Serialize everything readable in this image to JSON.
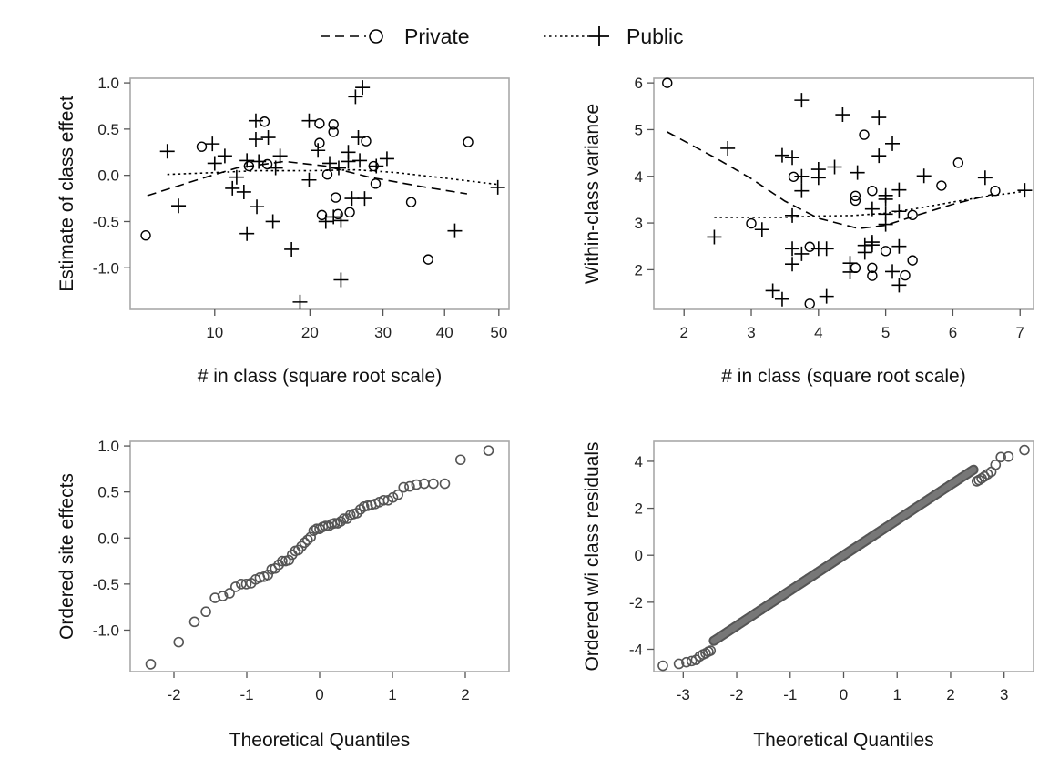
{
  "legend": [
    {
      "label": "Private",
      "line": "dashed",
      "marker": "circle"
    },
    {
      "label": "Public",
      "line": "dotted",
      "marker": "plus"
    }
  ],
  "chart_data": [
    {
      "type": "scatter",
      "panel": "top-left",
      "xlabel": "# in class (square root scale)",
      "ylabel": "Estimate of class effect",
      "x_scale": "sqrt",
      "xlim": [
        4,
        52
      ],
      "ylim": [
        -1.45,
        1.05
      ],
      "xticks": [
        10,
        20,
        30,
        40,
        50
      ],
      "xtick_labels": [
        "10",
        "20",
        "30",
        "40",
        "50"
      ],
      "yticks": [
        -1.0,
        -0.5,
        0.0,
        0.5,
        1.0
      ],
      "ytick_labels": [
        "-1.0",
        "-0.5",
        "0.0",
        "0.5",
        "1.0"
      ],
      "series": [
        {
          "name": "Private",
          "marker": "circle",
          "points": [
            [
              4.9,
              -0.65
            ],
            [
              8.9,
              0.31
            ],
            [
              13.2,
              0.1
            ],
            [
              14.8,
              0.58
            ],
            [
              15.1,
              0.12
            ],
            [
              21.2,
              0.56
            ],
            [
              21.2,
              0.35
            ],
            [
              21.5,
              -0.43
            ],
            [
              22.2,
              0.01
            ],
            [
              23.0,
              0.55
            ],
            [
              23.0,
              0.47
            ],
            [
              23.3,
              -0.24
            ],
            [
              23.6,
              -0.42
            ],
            [
              25.2,
              -0.4
            ],
            [
              27.5,
              0.37
            ],
            [
              28.6,
              0.1
            ],
            [
              28.9,
              -0.09
            ],
            [
              34.4,
              -0.29
            ],
            [
              37.2,
              -0.91
            ],
            [
              44.2,
              0.36
            ]
          ]
        },
        {
          "name": "Public",
          "marker": "plus",
          "points": [
            [
              6.3,
              0.26
            ],
            [
              7.1,
              -0.33
            ],
            [
              9.8,
              0.34
            ],
            [
              10.0,
              0.13
            ],
            [
              10.9,
              0.21
            ],
            [
              11.6,
              -0.14
            ],
            [
              12.0,
              -0.02
            ],
            [
              12.7,
              -0.18
            ],
            [
              13.0,
              -0.63
            ],
            [
              13.0,
              0.16
            ],
            [
              13.9,
              0.59
            ],
            [
              13.9,
              0.39
            ],
            [
              14.0,
              -0.34
            ],
            [
              14.2,
              0.15
            ],
            [
              15.2,
              0.41
            ],
            [
              15.7,
              -0.5
            ],
            [
              16.0,
              0.08
            ],
            [
              16.5,
              0.21
            ],
            [
              17.8,
              -0.8
            ],
            [
              18.8,
              -1.37
            ],
            [
              19.9,
              0.59
            ],
            [
              19.9,
              -0.05
            ],
            [
              21.0,
              0.27
            ],
            [
              22.0,
              -0.5
            ],
            [
              22.5,
              0.13
            ],
            [
              23.0,
              -0.45
            ],
            [
              23.7,
              0.08
            ],
            [
              24.0,
              -0.49
            ],
            [
              24.0,
              -1.13
            ],
            [
              25.0,
              0.25
            ],
            [
              25.0,
              0.15
            ],
            [
              25.5,
              -0.25
            ],
            [
              26.0,
              0.85
            ],
            [
              26.4,
              0.41
            ],
            [
              26.6,
              0.16
            ],
            [
              27.0,
              0.95
            ],
            [
              27.3,
              -0.25
            ],
            [
              29.0,
              0.1
            ],
            [
              30.6,
              0.18
            ],
            [
              41.8,
              -0.6
            ],
            [
              49.8,
              -0.13
            ]
          ]
        }
      ],
      "smooth_lines": [
        {
          "name": "Private",
          "style": "dashed",
          "points": [
            [
              5.0,
              -0.22
            ],
            [
              9.0,
              -0.03
            ],
            [
              12.0,
              0.08
            ],
            [
              17.0,
              0.15
            ],
            [
              22.0,
              0.1
            ],
            [
              28.0,
              -0.02
            ],
            [
              36.0,
              -0.12
            ],
            [
              44.0,
              -0.2
            ]
          ]
        },
        {
          "name": "Public",
          "style": "dotted",
          "points": [
            [
              6.3,
              0.01
            ],
            [
              10.0,
              0.03
            ],
            [
              14.0,
              0.05
            ],
            [
              20.0,
              0.05
            ],
            [
              26.0,
              0.06
            ],
            [
              32.0,
              0.03
            ],
            [
              40.0,
              -0.03
            ],
            [
              50.0,
              -0.1
            ]
          ]
        }
      ]
    },
    {
      "type": "scatter",
      "panel": "top-right",
      "xlabel": "# in class (square root scale)",
      "ylabel": "Within-class variance",
      "xlim": [
        1.55,
        7.2
      ],
      "ylim": [
        1.15,
        6.1
      ],
      "xticks": [
        2,
        3,
        4,
        5,
        6,
        7
      ],
      "xtick_labels": [
        "2",
        "3",
        "4",
        "5",
        "6",
        "7"
      ],
      "yticks": [
        2,
        3,
        4,
        5,
        6
      ],
      "ytick_labels": [
        "2",
        "3",
        "4",
        "5",
        "6"
      ],
      "series": [
        {
          "name": "Private",
          "marker": "circle",
          "points": [
            [
              1.75,
              6.0
            ],
            [
              3.0,
              2.99
            ],
            [
              3.63,
              3.99
            ],
            [
              3.87,
              2.49
            ],
            [
              3.87,
              1.27
            ],
            [
              4.55,
              3.58
            ],
            [
              4.55,
              3.48
            ],
            [
              4.55,
              2.04
            ],
            [
              4.68,
              4.89
            ],
            [
              4.8,
              3.69
            ],
            [
              4.8,
              2.04
            ],
            [
              4.8,
              1.87
            ],
            [
              5.0,
              2.4
            ],
            [
              5.29,
              1.88
            ],
            [
              5.4,
              3.17
            ],
            [
              5.4,
              2.2
            ],
            [
              5.83,
              3.8
            ],
            [
              6.08,
              4.29
            ],
            [
              6.63,
              3.69
            ]
          ]
        },
        {
          "name": "Public",
          "marker": "plus",
          "points": [
            [
              2.45,
              2.7
            ],
            [
              2.65,
              4.6
            ],
            [
              3.16,
              2.86
            ],
            [
              3.32,
              1.55
            ],
            [
              3.46,
              4.45
            ],
            [
              3.46,
              1.37
            ],
            [
              3.61,
              2.45
            ],
            [
              3.61,
              2.12
            ],
            [
              3.61,
              4.4
            ],
            [
              3.61,
              3.16
            ],
            [
              3.75,
              5.63
            ],
            [
              3.75,
              4.0
            ],
            [
              3.75,
              3.69
            ],
            [
              3.75,
              2.34
            ],
            [
              4.0,
              4.15
            ],
            [
              4.0,
              3.97
            ],
            [
              4.0,
              2.45
            ],
            [
              4.12,
              2.45
            ],
            [
              4.12,
              1.43
            ],
            [
              4.24,
              4.2
            ],
            [
              4.36,
              5.32
            ],
            [
              4.47,
              2.14
            ],
            [
              4.47,
              1.95
            ],
            [
              4.58,
              4.08
            ],
            [
              4.69,
              2.52
            ],
            [
              4.69,
              2.37
            ],
            [
              4.8,
              3.3
            ],
            [
              4.8,
              2.59
            ],
            [
              4.8,
              2.53
            ],
            [
              4.9,
              4.44
            ],
            [
              4.9,
              5.26
            ],
            [
              5.0,
              2.97
            ],
            [
              5.0,
              3.19
            ],
            [
              5.0,
              3.51
            ],
            [
              5.0,
              3.59
            ],
            [
              5.1,
              4.7
            ],
            [
              5.1,
              1.96
            ],
            [
              5.2,
              3.71
            ],
            [
              5.2,
              2.5
            ],
            [
              5.2,
              1.67
            ],
            [
              5.2,
              3.25
            ],
            [
              5.57,
              4.01
            ],
            [
              6.48,
              3.97
            ],
            [
              7.07,
              3.7
            ]
          ]
        }
      ],
      "smooth_lines": [
        {
          "name": "Private",
          "style": "dashed",
          "points": [
            [
              1.75,
              4.95
            ],
            [
              2.5,
              4.37
            ],
            [
              3.0,
              3.95
            ],
            [
              3.5,
              3.47
            ],
            [
              4.0,
              3.1
            ],
            [
              4.6,
              2.88
            ],
            [
              5.0,
              2.95
            ],
            [
              5.5,
              3.18
            ],
            [
              6.0,
              3.4
            ],
            [
              6.6,
              3.62
            ]
          ]
        },
        {
          "name": "Public",
          "style": "dotted",
          "points": [
            [
              2.45,
              3.12
            ],
            [
              3.0,
              3.12
            ],
            [
              3.5,
              3.12
            ],
            [
              4.0,
              3.15
            ],
            [
              4.5,
              3.16
            ],
            [
              5.0,
              3.21
            ],
            [
              5.5,
              3.32
            ],
            [
              6.0,
              3.45
            ],
            [
              6.5,
              3.57
            ],
            [
              7.07,
              3.68
            ]
          ]
        }
      ]
    },
    {
      "type": "scatter",
      "panel": "bottom-left",
      "subtype": "qq",
      "xlabel": "Theoretical Quantiles",
      "ylabel": "Ordered site effects",
      "xlim": [
        -2.6,
        2.6
      ],
      "ylim": [
        -1.45,
        1.05
      ],
      "xticks": [
        -2,
        -1,
        0,
        1,
        2
      ],
      "xtick_labels": [
        "-2",
        "-1",
        "0",
        "1",
        "2"
      ],
      "yticks": [
        -1.0,
        -0.5,
        0.0,
        0.5,
        1.0
      ],
      "ytick_labels": [
        "-1.0",
        "-0.5",
        "0.0",
        "0.5",
        "1.0"
      ],
      "n": 61,
      "values": [
        -1.37,
        -1.13,
        -0.91,
        -0.8,
        -0.65,
        -0.63,
        -0.6,
        -0.53,
        -0.5,
        -0.5,
        -0.49,
        -0.45,
        -0.43,
        -0.42,
        -0.4,
        -0.34,
        -0.33,
        -0.29,
        -0.25,
        -0.25,
        -0.24,
        -0.18,
        -0.14,
        -0.13,
        -0.09,
        -0.05,
        -0.02,
        0.01,
        0.08,
        0.1,
        0.1,
        0.12,
        0.13,
        0.13,
        0.15,
        0.16,
        0.16,
        0.18,
        0.21,
        0.21,
        0.25,
        0.26,
        0.27,
        0.31,
        0.34,
        0.35,
        0.36,
        0.37,
        0.39,
        0.41,
        0.41,
        0.44,
        0.47,
        0.55,
        0.56,
        0.58,
        0.59,
        0.59,
        0.59,
        0.85,
        0.95
      ]
    },
    {
      "type": "scatter",
      "panel": "bottom-right",
      "subtype": "qq",
      "xlabel": "Theoretical Quantiles",
      "ylabel": "Ordered w/i class residuals",
      "xlim": [
        -3.55,
        3.55
      ],
      "ylim": [
        -4.95,
        4.85
      ],
      "xticks": [
        -3,
        -2,
        -1,
        0,
        1,
        2,
        3
      ],
      "xtick_labels": [
        "-3",
        "-2",
        "-1",
        "0",
        "1",
        "2",
        "3"
      ],
      "yticks": [
        -4,
        -2,
        0,
        2,
        4
      ],
      "ytick_labels": [
        "-4",
        "-2",
        "0",
        "2",
        "4"
      ],
      "n": 1400,
      "sample_sd": 1.5,
      "lower_tail": [
        [
          -3.38,
          -4.7
        ],
        [
          -3.08,
          -4.62
        ],
        [
          -2.94,
          -4.55
        ],
        [
          -2.84,
          -4.5
        ],
        [
          -2.76,
          -4.45
        ],
        [
          -2.69,
          -4.3
        ],
        [
          -2.63,
          -4.22
        ],
        [
          -2.58,
          -4.17
        ],
        [
          -2.53,
          -4.1
        ],
        [
          -2.49,
          -4.06
        ]
      ],
      "upper_tail": [
        [
          2.49,
          3.15
        ],
        [
          2.53,
          3.2
        ],
        [
          2.58,
          3.27
        ],
        [
          2.63,
          3.35
        ],
        [
          2.69,
          3.45
        ],
        [
          2.76,
          3.55
        ],
        [
          2.84,
          3.85
        ],
        [
          2.94,
          4.18
        ],
        [
          3.08,
          4.2
        ],
        [
          3.38,
          4.48
        ]
      ]
    }
  ]
}
